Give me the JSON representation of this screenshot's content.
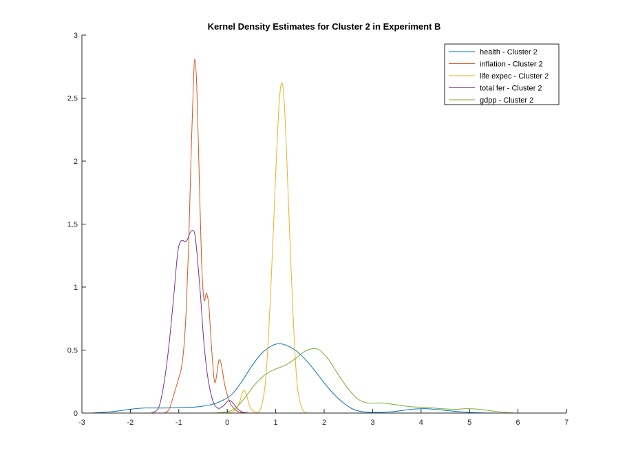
{
  "chart_data": {
    "type": "line",
    "title": "Kernel Density Estimates for Cluster 2 in Experiment B",
    "xlabel": "",
    "ylabel": "",
    "xlim": [
      -3,
      7
    ],
    "ylim": [
      0,
      3
    ],
    "xticks": [
      -3,
      -2,
      -1,
      0,
      1,
      2,
      3,
      4,
      5,
      6,
      7
    ],
    "yticks": [
      0,
      0.5,
      1,
      1.5,
      2,
      2.5,
      3
    ],
    "xtick_labels": [
      "-3",
      "-2",
      "-1",
      "0",
      "1",
      "2",
      "3",
      "4",
      "5",
      "6",
      "7"
    ],
    "ytick_labels": [
      "0",
      "0.5",
      "1",
      "1.5",
      "2",
      "2.5",
      "3"
    ],
    "grid": false,
    "legend_position": "top-right",
    "series": [
      {
        "name": "health - Cluster 2",
        "color": "#0072BD",
        "points": [
          [
            -2.8,
            0
          ],
          [
            -2.4,
            0.01
          ],
          [
            -2.0,
            0.03
          ],
          [
            -1.7,
            0.04
          ],
          [
            -1.3,
            0.04
          ],
          [
            -0.9,
            0.045
          ],
          [
            -0.6,
            0.05
          ],
          [
            -0.3,
            0.07
          ],
          [
            -0.1,
            0.1
          ],
          [
            0.1,
            0.15
          ],
          [
            0.3,
            0.25
          ],
          [
            0.5,
            0.37
          ],
          [
            0.7,
            0.47
          ],
          [
            0.9,
            0.53
          ],
          [
            1.05,
            0.55
          ],
          [
            1.2,
            0.54
          ],
          [
            1.4,
            0.5
          ],
          [
            1.6,
            0.43
          ],
          [
            1.8,
            0.34
          ],
          [
            2.0,
            0.24
          ],
          [
            2.2,
            0.15
          ],
          [
            2.4,
            0.08
          ],
          [
            2.6,
            0.03
          ],
          [
            2.8,
            0.01
          ],
          [
            3.0,
            0.005
          ],
          [
            3.4,
            0.01
          ],
          [
            3.8,
            0.03
          ],
          [
            4.1,
            0.035
          ],
          [
            4.4,
            0.025
          ],
          [
            4.8,
            0.01
          ],
          [
            5.2,
            0.002
          ],
          [
            5.6,
            0
          ]
        ]
      },
      {
        "name": "inflation - Cluster 2",
        "color": "#D95319",
        "points": [
          [
            -1.3,
            0
          ],
          [
            -1.2,
            0.03
          ],
          [
            -1.1,
            0.15
          ],
          [
            -1.0,
            0.28
          ],
          [
            -0.95,
            0.35
          ],
          [
            -0.9,
            0.5
          ],
          [
            -0.85,
            0.8
          ],
          [
            -0.8,
            1.3
          ],
          [
            -0.75,
            2.0
          ],
          [
            -0.7,
            2.6
          ],
          [
            -0.67,
            2.81
          ],
          [
            -0.63,
            2.6
          ],
          [
            -0.58,
            1.9
          ],
          [
            -0.53,
            1.2
          ],
          [
            -0.48,
            0.9
          ],
          [
            -0.43,
            0.95
          ],
          [
            -0.38,
            0.85
          ],
          [
            -0.33,
            0.55
          ],
          [
            -0.28,
            0.3
          ],
          [
            -0.25,
            0.24
          ],
          [
            -0.22,
            0.3
          ],
          [
            -0.17,
            0.42
          ],
          [
            -0.12,
            0.38
          ],
          [
            -0.05,
            0.22
          ],
          [
            0.05,
            0.09
          ],
          [
            0.15,
            0.03
          ],
          [
            0.25,
            0.008
          ],
          [
            0.4,
            0
          ]
        ]
      },
      {
        "name": "life expec - Cluster 2",
        "color": "#EDB120",
        "points": [
          [
            0.0,
            0
          ],
          [
            0.15,
            0.02
          ],
          [
            0.25,
            0.08
          ],
          [
            0.3,
            0.15
          ],
          [
            0.35,
            0.18
          ],
          [
            0.4,
            0.14
          ],
          [
            0.45,
            0.07
          ],
          [
            0.5,
            0.03
          ],
          [
            0.6,
            0.005
          ],
          [
            0.7,
            0.05
          ],
          [
            0.8,
            0.3
          ],
          [
            0.9,
            1.0
          ],
          [
            1.0,
            1.9
          ],
          [
            1.07,
            2.45
          ],
          [
            1.12,
            2.62
          ],
          [
            1.17,
            2.5
          ],
          [
            1.22,
            2.1
          ],
          [
            1.3,
            1.3
          ],
          [
            1.38,
            0.6
          ],
          [
            1.45,
            0.2
          ],
          [
            1.55,
            0.03
          ],
          [
            1.65,
            0
          ]
        ]
      },
      {
        "name": "total fer - Cluster 2",
        "color": "#7E2F8E",
        "points": [
          [
            -1.6,
            0
          ],
          [
            -1.5,
            0.01
          ],
          [
            -1.4,
            0.06
          ],
          [
            -1.3,
            0.25
          ],
          [
            -1.2,
            0.55
          ],
          [
            -1.1,
            0.95
          ],
          [
            -1.03,
            1.25
          ],
          [
            -0.98,
            1.35
          ],
          [
            -0.92,
            1.37
          ],
          [
            -0.87,
            1.36
          ],
          [
            -0.82,
            1.38
          ],
          [
            -0.77,
            1.43
          ],
          [
            -0.72,
            1.45
          ],
          [
            -0.67,
            1.42
          ],
          [
            -0.62,
            1.25
          ],
          [
            -0.55,
            0.92
          ],
          [
            -0.48,
            0.55
          ],
          [
            -0.4,
            0.28
          ],
          [
            -0.3,
            0.1
          ],
          [
            -0.2,
            0.04
          ],
          [
            -0.1,
            0.05
          ],
          [
            0.0,
            0.09
          ],
          [
            0.05,
            0.1
          ],
          [
            0.12,
            0.08
          ],
          [
            0.2,
            0.04
          ],
          [
            0.3,
            0.01
          ],
          [
            0.45,
            0
          ]
        ]
      },
      {
        "name": "gdpp - Cluster 2",
        "color": "#77AC30",
        "points": [
          [
            -0.3,
            0
          ],
          [
            0.0,
            0.01
          ],
          [
            0.2,
            0.05
          ],
          [
            0.4,
            0.14
          ],
          [
            0.6,
            0.24
          ],
          [
            0.8,
            0.31
          ],
          [
            1.0,
            0.35
          ],
          [
            1.2,
            0.38
          ],
          [
            1.4,
            0.43
          ],
          [
            1.6,
            0.49
          ],
          [
            1.75,
            0.51
          ],
          [
            1.9,
            0.5
          ],
          [
            2.1,
            0.42
          ],
          [
            2.3,
            0.3
          ],
          [
            2.5,
            0.19
          ],
          [
            2.7,
            0.11
          ],
          [
            2.9,
            0.08
          ],
          [
            3.2,
            0.08
          ],
          [
            3.5,
            0.065
          ],
          [
            3.8,
            0.05
          ],
          [
            4.1,
            0.045
          ],
          [
            4.4,
            0.035
          ],
          [
            4.7,
            0.03
          ],
          [
            4.95,
            0.035
          ],
          [
            5.2,
            0.03
          ],
          [
            5.5,
            0.015
          ],
          [
            5.8,
            0.003
          ],
          [
            6.0,
            0
          ]
        ]
      }
    ]
  }
}
